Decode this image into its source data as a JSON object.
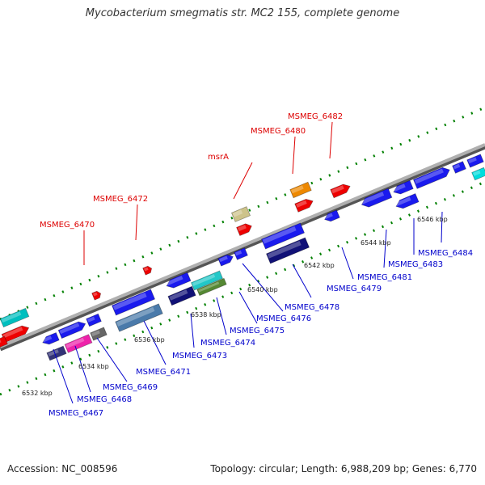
{
  "title": "Mycobacterium smegmatis str. MC2 155, complete genome",
  "accession": "Accession: NC_008596",
  "topology": "Topology: circular; Length: 6,988,209 bp; Genes: 6,770",
  "colors": {
    "label_red": "#dd0000",
    "label_blue": "#0000cc",
    "backbone": "#8a8a8a",
    "tick": "#008000"
  },
  "ruler": [
    "6532 kbp",
    "6534 kbp",
    "6536 kbp",
    "6538 kbp",
    "6540 kbp",
    "6542 kbp",
    "6544 kbp",
    "6546 kbp"
  ],
  "upper_labels": [
    "MSMEG_6470",
    "MSMEG_6472",
    "msrA",
    "MSMEG_6480",
    "MSMEG_6482"
  ],
  "lower_labels": [
    "MSMEG_6467",
    "MSMEG_6468",
    "MSMEG_6469",
    "MSMEG_6471",
    "MSMEG_6473",
    "MSMEG_6474",
    "MSMEG_6475",
    "MSMEG_6476",
    "MSMEG_6478",
    "MSMEG_6479",
    "MSMEG_6481",
    "MSMEG_6483",
    "MSMEG_6484"
  ]
}
